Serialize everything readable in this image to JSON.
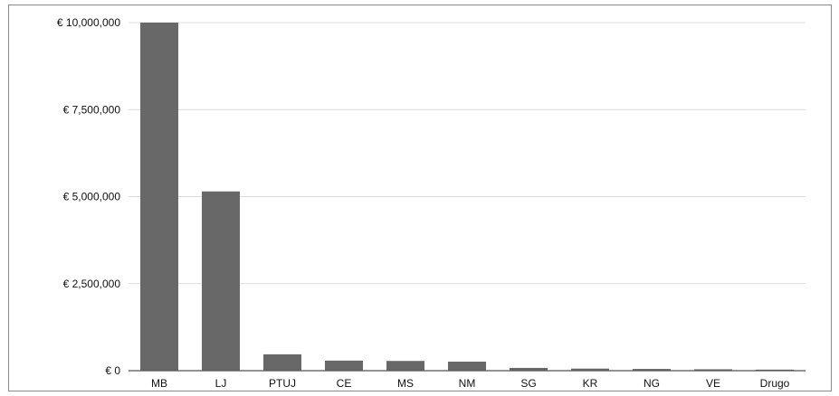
{
  "chart_data": {
    "type": "bar",
    "categories": [
      "MB",
      "LJ",
      "PTUJ",
      "CE",
      "MS",
      "NM",
      "SG",
      "KR",
      "NG",
      "VE",
      "Drugo"
    ],
    "values": [
      10000000,
      5150000,
      470000,
      290000,
      280000,
      260000,
      80000,
      60000,
      50000,
      40000,
      30000
    ],
    "ylim": [
      0,
      10000000
    ],
    "yticks": [
      0,
      2500000,
      5000000,
      7500000,
      10000000
    ],
    "ytick_labels": [
      "€ 0",
      "€ 2,500,000",
      "€ 5,000,000",
      "€ 7,500,000",
      "€ 10,000,000"
    ],
    "grid": true,
    "bar_color": "#686868",
    "title": "",
    "xlabel": "",
    "ylabel": ""
  }
}
